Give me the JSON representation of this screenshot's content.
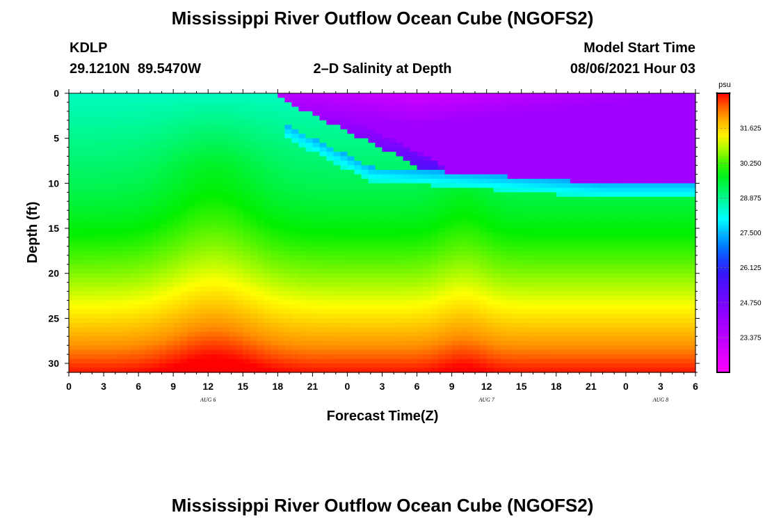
{
  "title": "Mississippi River Outflow Ocean Cube (NGOFS2)",
  "footer_title": "Mississippi River Outflow Ocean Cube (NGOFS2)",
  "station": {
    "id": "KDLP",
    "coords": "29.1210N  89.5470W"
  },
  "subtitle": "2–D Salinity at Depth",
  "model_start": {
    "label": "Model Start Time",
    "value": "08/06/2021 Hour 03"
  },
  "chart_data": {
    "type": "heatmap",
    "title": "2–D Salinity at Depth",
    "xlabel": "Forecast Time(Z)",
    "ylabel": "Depth (ft)",
    "x_ticks": [
      "0",
      "3",
      "6",
      "9",
      "12",
      "15",
      "18",
      "21",
      "0",
      "3",
      "6",
      "9",
      "12",
      "15",
      "18",
      "21",
      "0",
      "3",
      "6"
    ],
    "x_range_hours": [
      0,
      54
    ],
    "date_labels": [
      {
        "hour": 12,
        "text": "AUG 6"
      },
      {
        "hour": 36,
        "text": "AUG 7"
      },
      {
        "hour": 51,
        "text": "AUG 8"
      }
    ],
    "y_ticks": [
      0,
      5,
      10,
      15,
      20,
      25,
      30
    ],
    "ylim": [
      31,
      0
    ],
    "colorbar": {
      "unit": "psu",
      "range": [
        22,
        33
      ],
      "labels": [
        "31.625",
        "30.250",
        "28.875",
        "27.500",
        "26.125",
        "24.750",
        "23.375"
      ],
      "tick_values": [
        31.625,
        30.25,
        28.875,
        27.5,
        26.125,
        24.75,
        23.375
      ]
    }
  }
}
